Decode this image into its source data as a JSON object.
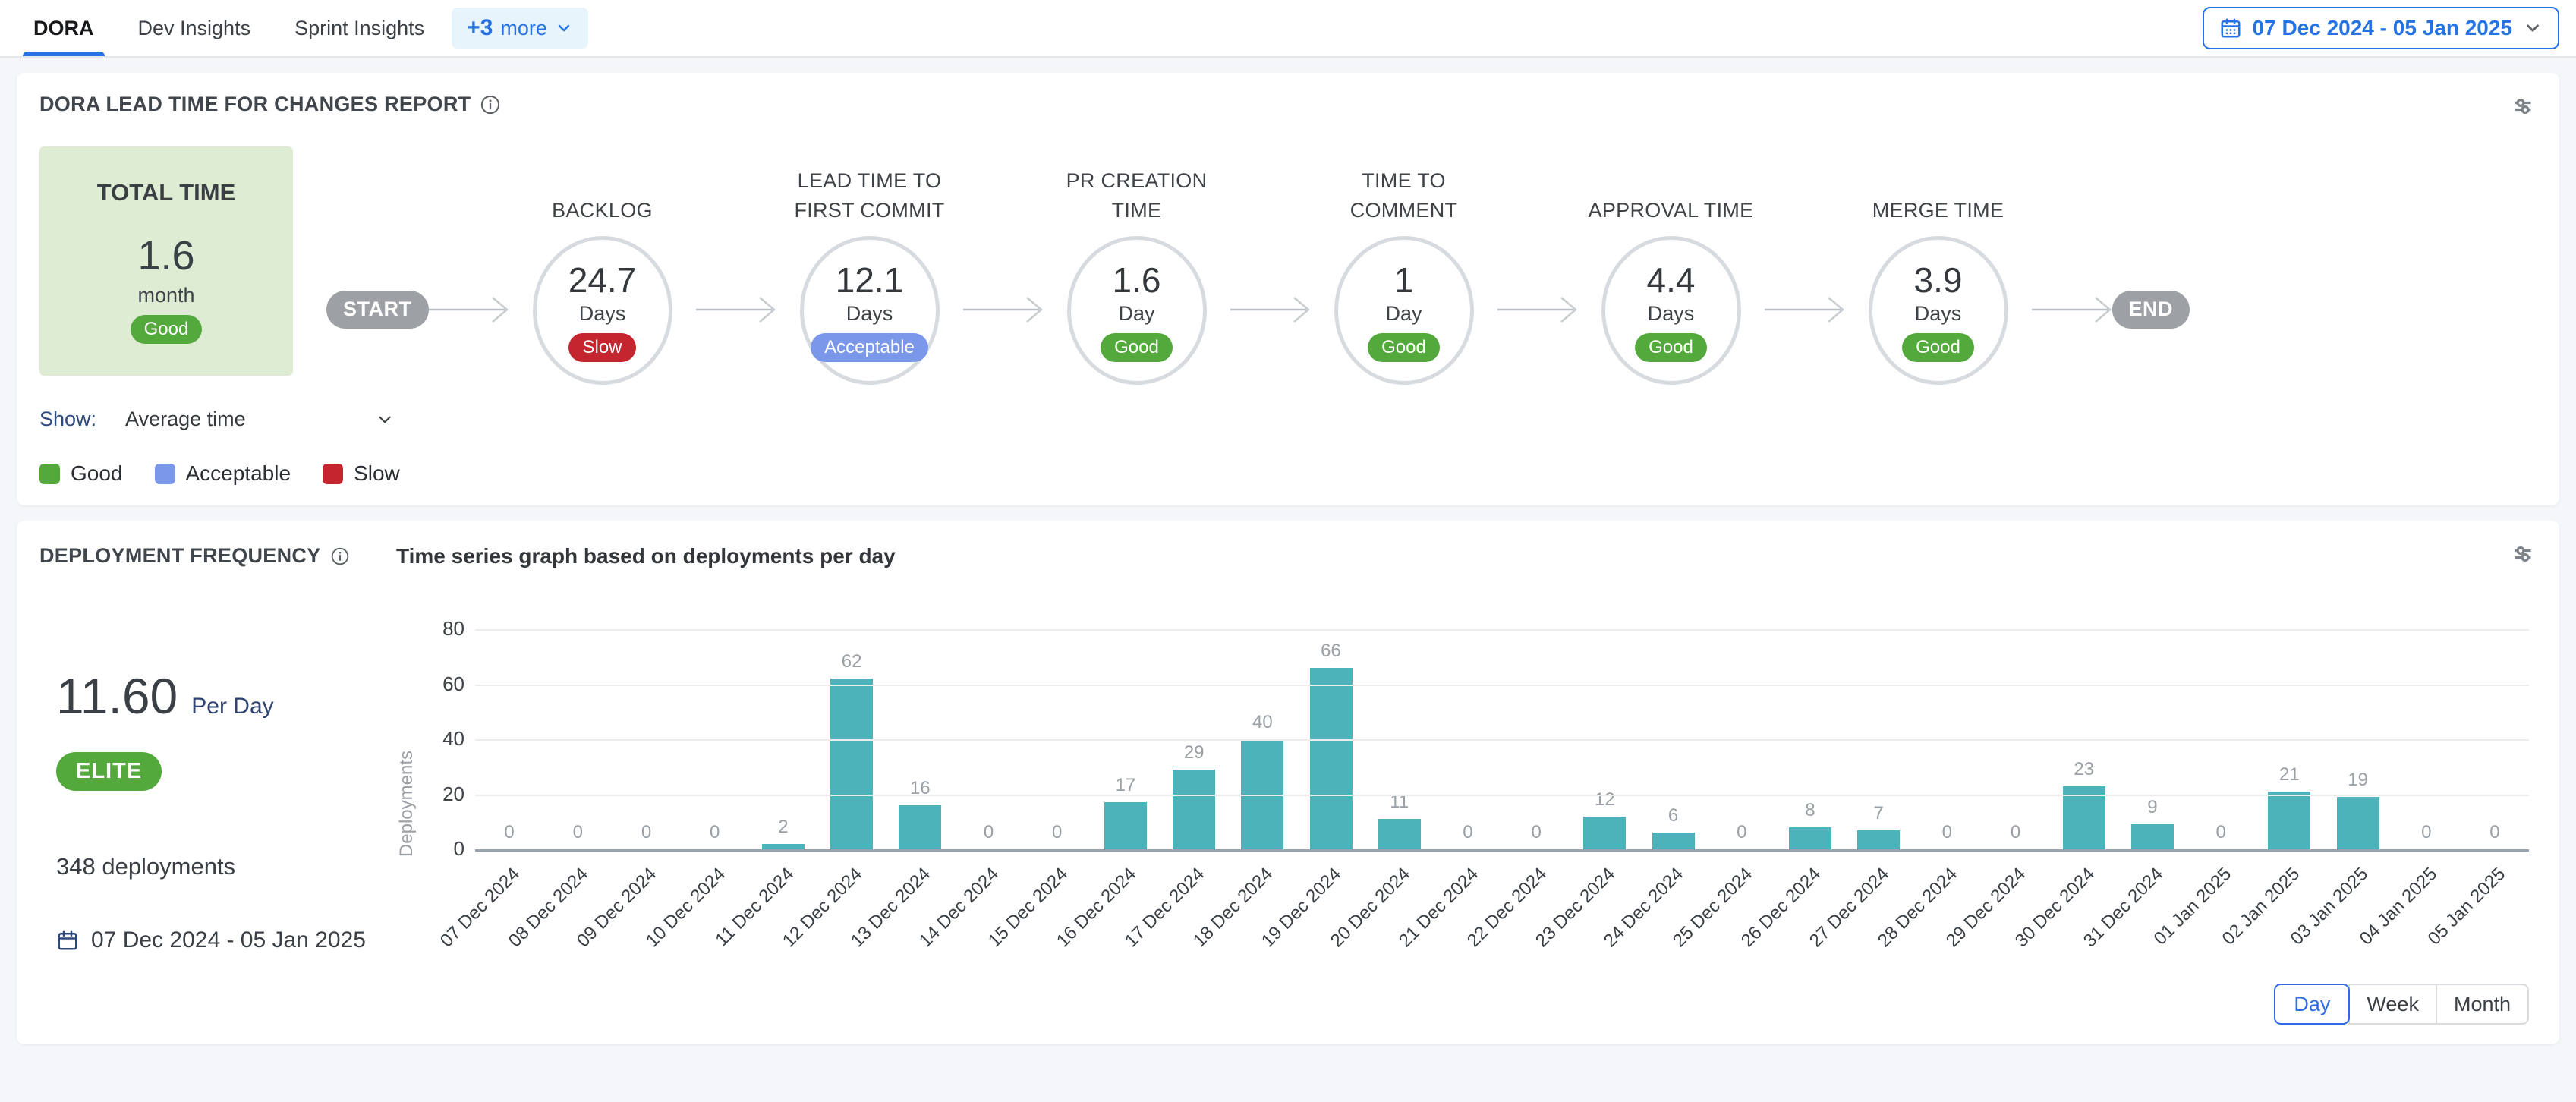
{
  "topbar": {
    "tabs": [
      {
        "label": "DORA",
        "active": true
      },
      {
        "label": "Dev Insights",
        "active": false
      },
      {
        "label": "Sprint Insights",
        "active": false
      }
    ],
    "more_tab": {
      "plus": "+3",
      "label": "more"
    },
    "date_range": "07 Dec 2024 - 05 Jan 2025"
  },
  "lead_time_card": {
    "title": "DORA LEAD TIME FOR CHANGES REPORT",
    "total": {
      "label": "TOTAL TIME",
      "value": "1.6",
      "unit": "month",
      "status": "Good"
    },
    "start_label": "START",
    "end_label": "END",
    "stages": [
      {
        "name": "BACKLOG",
        "value": "24.7",
        "unit": "Days",
        "status": "Slow"
      },
      {
        "name": "LEAD TIME TO FIRST COMMIT",
        "value": "12.1",
        "unit": "Days",
        "status": "Acceptable"
      },
      {
        "name": "PR CREATION TIME",
        "value": "1.6",
        "unit": "Day",
        "status": "Good"
      },
      {
        "name": "TIME TO COMMENT",
        "value": "1",
        "unit": "Day",
        "status": "Good"
      },
      {
        "name": "APPROVAL TIME",
        "value": "4.4",
        "unit": "Days",
        "status": "Good"
      },
      {
        "name": "MERGE TIME",
        "value": "3.9",
        "unit": "Days",
        "status": "Good"
      }
    ],
    "show_label": "Show:",
    "show_value": "Average time",
    "legend": [
      {
        "label": "Good",
        "color": "#53a93c"
      },
      {
        "label": "Acceptable",
        "color": "#7b97ea"
      },
      {
        "label": "Slow",
        "color": "#c5252f"
      }
    ],
    "status_colors": {
      "Good": "#53a93c",
      "Acceptable": "#7b97ea",
      "Slow": "#c5252f"
    }
  },
  "deployment_card": {
    "title": "DEPLOYMENT FREQUENCY",
    "subtitle": "Time series graph based on deployments per day",
    "rate_value": "11.60",
    "rate_unit": "Per Day",
    "tier": "ELITE",
    "total_deployments": "348 deployments",
    "date_range": "07 Dec 2024 - 05 Jan 2025",
    "granularity": [
      {
        "label": "Day",
        "active": true
      },
      {
        "label": "Week",
        "active": false
      },
      {
        "label": "Month",
        "active": false
      }
    ]
  },
  "chart_data": {
    "type": "bar",
    "title": "Time series graph based on deployments per day",
    "xlabel": "",
    "ylabel": "Deployments",
    "ylim": [
      0,
      80
    ],
    "yticks": [
      0,
      20,
      40,
      60,
      80
    ],
    "grid": true,
    "bar_color": "#4db3ba",
    "value_labels": true,
    "categories": [
      "07 Dec 2024",
      "08 Dec 2024",
      "09 Dec 2024",
      "10 Dec 2024",
      "11 Dec 2024",
      "12 Dec 2024",
      "13 Dec 2024",
      "14 Dec 2024",
      "15 Dec 2024",
      "16 Dec 2024",
      "17 Dec 2024",
      "18 Dec 2024",
      "19 Dec 2024",
      "20 Dec 2024",
      "21 Dec 2024",
      "22 Dec 2024",
      "23 Dec 2024",
      "24 Dec 2024",
      "25 Dec 2024",
      "26 Dec 2024",
      "27 Dec 2024",
      "28 Dec 2024",
      "29 Dec 2024",
      "30 Dec 2024",
      "31 Dec 2024",
      "01 Jan 2025",
      "02 Jan 2025",
      "03 Jan 2025",
      "04 Jan 2025",
      "05 Jan 2025"
    ],
    "values": [
      0,
      0,
      0,
      0,
      2,
      62,
      16,
      0,
      0,
      17,
      29,
      40,
      66,
      11,
      0,
      0,
      12,
      6,
      0,
      8,
      7,
      0,
      0,
      23,
      9,
      0,
      21,
      19,
      0,
      0
    ]
  }
}
